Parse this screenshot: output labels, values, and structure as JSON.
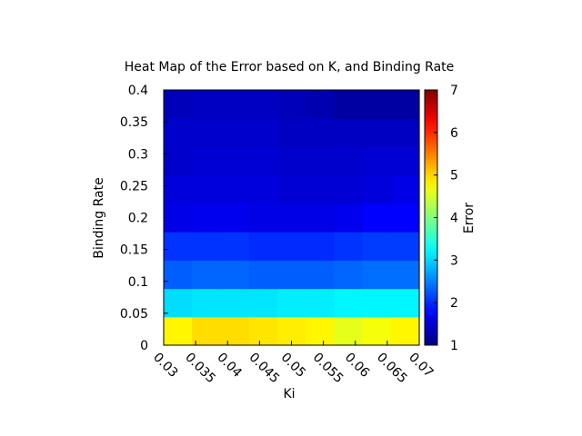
{
  "chart_data": {
    "type": "heatmap",
    "title": "Heat Map of the Error based on K, and Binding Rate",
    "xlabel": "Ki",
    "ylabel": "Binding Rate",
    "colorbar_label": "Error",
    "x_ticks": [
      "0.03",
      "0.035",
      "0.04",
      "0.045",
      "0.05",
      "0.055",
      "0.06",
      "0.065",
      "0.07"
    ],
    "y_ticks": [
      "0",
      "0.05",
      "0.1",
      "0.15",
      "0.2",
      "0.25",
      "0.3",
      "0.35",
      "0.4"
    ],
    "colorbar_ticks": [
      "1",
      "2",
      "3",
      "4",
      "5",
      "6",
      "7"
    ],
    "clim": [
      1,
      7
    ],
    "colormap": "jet",
    "x": [
      0.03,
      0.035,
      0.04,
      0.045,
      0.05,
      0.055,
      0.06,
      0.065,
      0.07
    ],
    "y": [
      0.0,
      0.05,
      0.1,
      0.15,
      0.2,
      0.25,
      0.3,
      0.35,
      0.4
    ],
    "values": [
      [
        4.8,
        4.95,
        4.95,
        4.9,
        4.85,
        4.8,
        4.6,
        4.7,
        4.8
      ],
      [
        3.05,
        3.1,
        3.1,
        3.1,
        3.15,
        3.15,
        3.2,
        3.2,
        3.2
      ],
      [
        2.3,
        2.35,
        2.35,
        2.3,
        2.3,
        2.3,
        2.35,
        2.4,
        2.4
      ],
      [
        2.05,
        2.05,
        2.05,
        2.0,
        2.0,
        2.0,
        2.05,
        2.1,
        2.1
      ],
      [
        1.6,
        1.65,
        1.65,
        1.6,
        1.6,
        1.6,
        1.65,
        1.75,
        1.75
      ],
      [
        1.55,
        1.55,
        1.55,
        1.55,
        1.5,
        1.5,
        1.5,
        1.55,
        1.6
      ],
      [
        1.45,
        1.5,
        1.5,
        1.5,
        1.45,
        1.45,
        1.45,
        1.5,
        1.5
      ],
      [
        1.45,
        1.45,
        1.45,
        1.45,
        1.4,
        1.4,
        1.4,
        1.4,
        1.4
      ],
      [
        1.35,
        1.4,
        1.4,
        1.4,
        1.35,
        1.3,
        1.2,
        1.2,
        1.2
      ]
    ]
  }
}
